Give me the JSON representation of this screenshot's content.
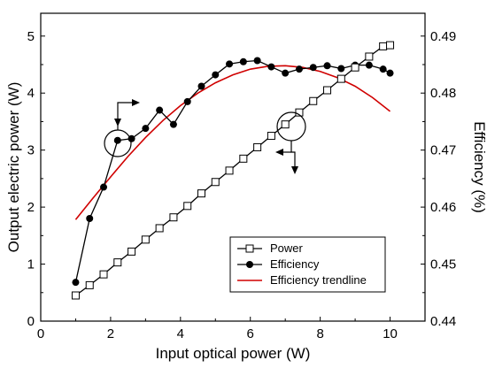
{
  "chart_data": {
    "type": "line",
    "xlabel": "Input optical power (W)",
    "ylabel_left": "Output electric power (W)",
    "ylabel_right": "Efficiency (%)",
    "xlim": [
      0,
      11
    ],
    "ylim_left": [
      0,
      5.4
    ],
    "ylim_right": [
      0.44,
      0.494
    ],
    "x_ticks": [
      "0",
      "2",
      "4",
      "6",
      "8",
      "10"
    ],
    "y_left_ticks": [
      "0",
      "1",
      "2",
      "3",
      "4",
      "5"
    ],
    "y_right_ticks": [
      "0.44",
      "0.45",
      "0.46",
      "0.47",
      "0.48",
      "0.49"
    ],
    "legend_position": "bottom-right",
    "series": [
      {
        "name": "Power",
        "axis": "left",
        "marker": "open-square",
        "color": "#000000",
        "x": [
          1.0,
          1.4,
          1.8,
          2.2,
          2.6,
          3.0,
          3.4,
          3.8,
          4.2,
          4.6,
          5.0,
          5.4,
          5.8,
          6.2,
          6.6,
          7.0,
          7.4,
          7.8,
          8.2,
          8.6,
          9.0,
          9.4,
          9.8,
          10.0
        ],
        "y": [
          0.45,
          0.63,
          0.82,
          1.03,
          1.22,
          1.43,
          1.63,
          1.82,
          2.02,
          2.24,
          2.44,
          2.64,
          2.85,
          3.05,
          3.25,
          3.45,
          3.66,
          3.86,
          4.05,
          4.25,
          4.45,
          4.64,
          4.82,
          4.84
        ]
      },
      {
        "name": "Efficiency",
        "axis": "right",
        "marker": "filled-circle",
        "color": "#000000",
        "x": [
          1.0,
          1.4,
          1.8,
          2.2,
          2.6,
          3.0,
          3.4,
          3.8,
          4.2,
          4.6,
          5.0,
          5.4,
          5.8,
          6.2,
          6.6,
          7.0,
          7.4,
          7.8,
          8.2,
          8.6,
          9.0,
          9.4,
          9.8,
          10.0
        ],
        "y": [
          0.4468,
          0.458,
          0.4635,
          0.4717,
          0.472,
          0.4738,
          0.477,
          0.4745,
          0.4785,
          0.4812,
          0.4832,
          0.4851,
          0.4855,
          0.4857,
          0.4846,
          0.4835,
          0.4842,
          0.4845,
          0.4848,
          0.4843,
          0.4849,
          0.4849,
          0.4842,
          0.4835
        ]
      },
      {
        "name": "Efficiency trendline",
        "axis": "right",
        "marker": "none",
        "color": "#d00000",
        "x": [
          1.0,
          1.5,
          2.0,
          2.5,
          3.0,
          3.5,
          4.0,
          4.5,
          5.0,
          5.5,
          6.0,
          6.5,
          7.0,
          7.5,
          8.0,
          8.5,
          9.0,
          9.5,
          10.0
        ],
        "y": [
          0.4578,
          0.4616,
          0.4653,
          0.4689,
          0.4722,
          0.4752,
          0.4778,
          0.48,
          0.4818,
          0.4832,
          0.4842,
          0.4847,
          0.4848,
          0.4845,
          0.4838,
          0.4827,
          0.4812,
          0.4792,
          0.4768
        ]
      }
    ],
    "annotations": [
      {
        "type": "circle",
        "x": 2.15,
        "y": 3.18,
        "note": "circle on efficiency curve with arrows to right axis"
      },
      {
        "type": "circle",
        "x": 7.15,
        "y": 3.45,
        "note": "circle on power curve with arrows to left axis"
      }
    ]
  }
}
